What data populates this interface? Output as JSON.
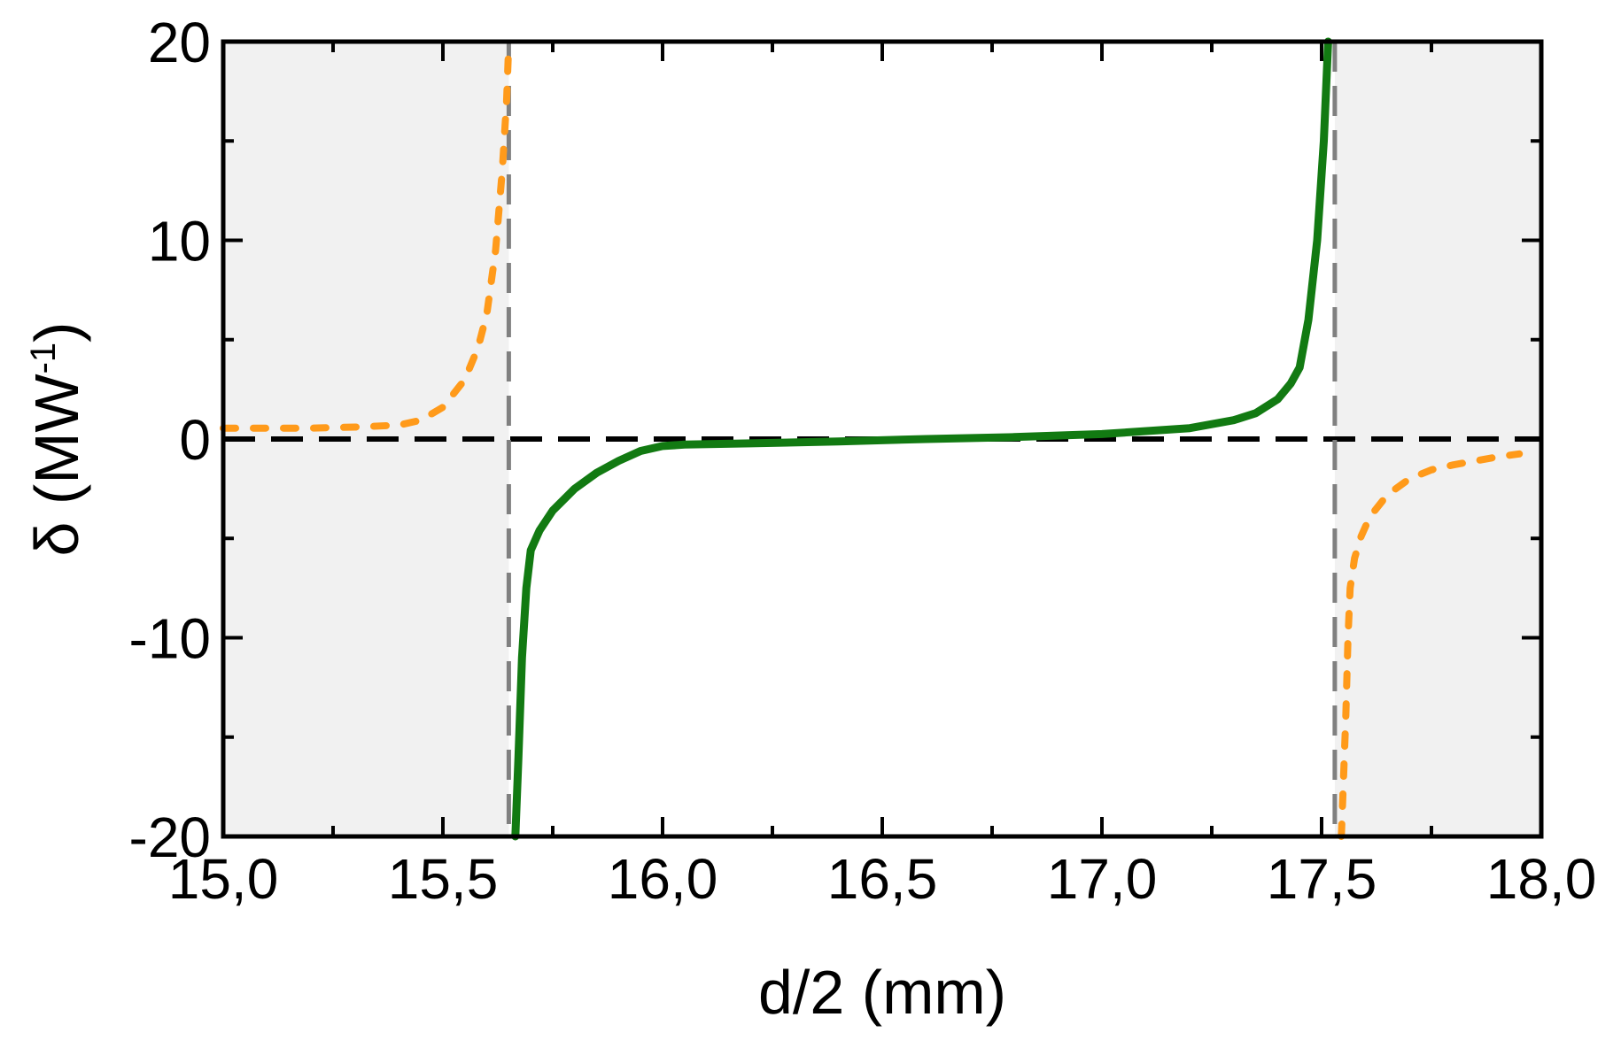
{
  "chart_data": {
    "type": "line",
    "xlabel": "d/2 (mm)",
    "ylabel": "δ (MW",
    "ylabel_sup": "-1",
    "ylabel_close": ")",
    "xlim": [
      15.0,
      18.0
    ],
    "ylim": [
      -20,
      20
    ],
    "x_ticks": [
      "15,0",
      "15,5",
      "16,0",
      "16,5",
      "17,0",
      "17,5",
      "18,0"
    ],
    "y_ticks": [
      "-20",
      "-10",
      "0",
      "10",
      "20"
    ],
    "grid": false,
    "legend": "none",
    "shaded_regions": [
      [
        15.0,
        15.65
      ],
      [
        17.53,
        18.0
      ]
    ],
    "reference_lines": {
      "horizontal_y": 0,
      "vertical_x": [
        15.65,
        17.53
      ]
    },
    "colors": {
      "green_series": "#127a12",
      "orange_series": "#ff9a1a",
      "shade": "#f1f1f1",
      "vertical_lines": "#808080",
      "zero_line": "#000000"
    },
    "series": [
      {
        "style": "solid",
        "color": "#127a12",
        "x": [
          15.665,
          15.672,
          15.68,
          15.69,
          15.7,
          15.72,
          15.75,
          15.8,
          15.85,
          15.9,
          15.95,
          16.0,
          16.05,
          16.2,
          16.4,
          16.6,
          16.8,
          17.0,
          17.2,
          17.3,
          17.35,
          17.4,
          17.43,
          17.45,
          17.47,
          17.49,
          17.505,
          17.515
        ],
        "y": [
          -20,
          -16,
          -11,
          -7.5,
          -5.6,
          -4.6,
          -3.6,
          -2.5,
          -1.7,
          -1.1,
          -0.6,
          -0.35,
          -0.28,
          -0.22,
          -0.12,
          0.0,
          0.1,
          0.25,
          0.55,
          0.95,
          1.3,
          2.0,
          2.8,
          3.6,
          6.0,
          10.0,
          15.0,
          20.0
        ]
      },
      {
        "style": "dashed",
        "color": "#ff9a1a",
        "x": [
          15.0,
          15.1,
          15.2,
          15.3,
          15.4,
          15.45,
          15.5,
          15.55,
          15.58,
          15.6,
          15.62,
          15.635,
          15.645,
          15.65
        ],
        "y": [
          0.55,
          0.55,
          0.55,
          0.6,
          0.7,
          0.95,
          1.6,
          3.0,
          4.6,
          6.3,
          9.5,
          13.5,
          17.0,
          20.0
        ]
      },
      {
        "style": "dashed",
        "color": "#ff9a1a",
        "x": [
          17.545,
          17.55,
          17.555,
          17.56,
          17.565,
          17.575,
          17.59,
          17.61,
          17.65,
          17.7,
          17.75,
          17.8,
          17.85,
          17.9,
          17.95
        ],
        "y": [
          -20,
          -17.0,
          -14.0,
          -10.0,
          -7.5,
          -6.0,
          -4.9,
          -3.9,
          -2.8,
          -2.0,
          -1.55,
          -1.3,
          -1.1,
          -0.9,
          -0.75
        ]
      }
    ]
  }
}
